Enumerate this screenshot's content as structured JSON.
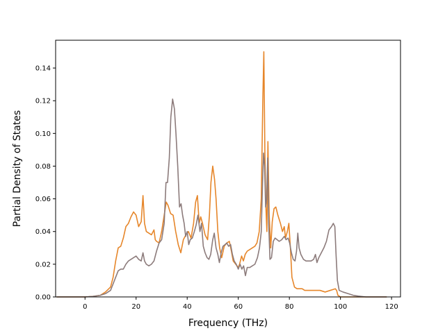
{
  "chart_data": {
    "type": "line",
    "title": "",
    "xlabel": "Frequency (THz)",
    "ylabel": "Partial Density of States",
    "xlim": [
      -11.5,
      123.5
    ],
    "ylim": [
      0,
      0.157
    ],
    "xticks": [
      0,
      20,
      40,
      60,
      80,
      100,
      120
    ],
    "yticks": [
      0.0,
      0.02,
      0.04,
      0.06,
      0.08,
      0.1,
      0.12,
      0.14
    ],
    "ytick_labels": [
      "0.00",
      "0.02",
      "0.04",
      "0.06",
      "0.08",
      "0.10",
      "0.12",
      "0.14"
    ],
    "grid": false,
    "legend": "none",
    "series": [
      {
        "color": "#e6862a",
        "points": [
          [
            -11,
            0
          ],
          [
            0,
            0
          ],
          [
            3,
            0.0003
          ],
          [
            6,
            0.001
          ],
          [
            8,
            0.003
          ],
          [
            10,
            0.006
          ],
          [
            11,
            0.012
          ],
          [
            12,
            0.022
          ],
          [
            13,
            0.03
          ],
          [
            14,
            0.031
          ],
          [
            15,
            0.036
          ],
          [
            16,
            0.043
          ],
          [
            17,
            0.045
          ],
          [
            18,
            0.049
          ],
          [
            19,
            0.052
          ],
          [
            20,
            0.05
          ],
          [
            21,
            0.043
          ],
          [
            22,
            0.046
          ],
          [
            22.7,
            0.062
          ],
          [
            23.3,
            0.045
          ],
          [
            24,
            0.04
          ],
          [
            25,
            0.039
          ],
          [
            26,
            0.038
          ],
          [
            27,
            0.041
          ],
          [
            27.5,
            0.035
          ],
          [
            28,
            0.034
          ],
          [
            29,
            0.033
          ],
          [
            30,
            0.04
          ],
          [
            31,
            0.05
          ],
          [
            31.8,
            0.058
          ],
          [
            32.5,
            0.056
          ],
          [
            33.5,
            0.051
          ],
          [
            34.5,
            0.05
          ],
          [
            35.5,
            0.04
          ],
          [
            36.5,
            0.032
          ],
          [
            37.5,
            0.027
          ],
          [
            38.5,
            0.035
          ],
          [
            39.5,
            0.038
          ],
          [
            40.5,
            0.04
          ],
          [
            41.5,
            0.036
          ],
          [
            42.5,
            0.045
          ],
          [
            43.3,
            0.058
          ],
          [
            44,
            0.062
          ],
          [
            44.7,
            0.045
          ],
          [
            45.3,
            0.049
          ],
          [
            46,
            0.045
          ],
          [
            47,
            0.038
          ],
          [
            48,
            0.035
          ],
          [
            48.7,
            0.05
          ],
          [
            49.3,
            0.07
          ],
          [
            50,
            0.08
          ],
          [
            50.7,
            0.072
          ],
          [
            51.3,
            0.06
          ],
          [
            52,
            0.04
          ],
          [
            52.7,
            0.03
          ],
          [
            53.5,
            0.024
          ],
          [
            54.5,
            0.031
          ],
          [
            55.5,
            0.033
          ],
          [
            56.5,
            0.034
          ],
          [
            57.3,
            0.028
          ],
          [
            58,
            0.022
          ],
          [
            59,
            0.02
          ],
          [
            60,
            0.018
          ],
          [
            60.5,
            0.02
          ],
          [
            61.3,
            0.025
          ],
          [
            62,
            0.022
          ],
          [
            62.7,
            0.026
          ],
          [
            63.5,
            0.028
          ],
          [
            64.5,
            0.029
          ],
          [
            65.5,
            0.03
          ],
          [
            66.5,
            0.031
          ],
          [
            67.3,
            0.033
          ],
          [
            68.2,
            0.04
          ],
          [
            69,
            0.06
          ],
          [
            69.6,
            0.12
          ],
          [
            70,
            0.15
          ],
          [
            70.4,
            0.09
          ],
          [
            70.8,
            0.055
          ],
          [
            71.2,
            0.04
          ],
          [
            71.6,
            0.095
          ],
          [
            72.1,
            0.05
          ],
          [
            72.7,
            0.03
          ],
          [
            73.3,
            0.046
          ],
          [
            74,
            0.054
          ],
          [
            74.7,
            0.055
          ],
          [
            75.5,
            0.05
          ],
          [
            76.5,
            0.045
          ],
          [
            77.3,
            0.04
          ],
          [
            78,
            0.043
          ],
          [
            78.5,
            0.036
          ],
          [
            79.2,
            0.04
          ],
          [
            79.8,
            0.045
          ],
          [
            80.4,
            0.03
          ],
          [
            81,
            0.012
          ],
          [
            82,
            0.006
          ],
          [
            83,
            0.005
          ],
          [
            84,
            0.005
          ],
          [
            85,
            0.005
          ],
          [
            86,
            0.004
          ],
          [
            88,
            0.004
          ],
          [
            90,
            0.004
          ],
          [
            92,
            0.004
          ],
          [
            94,
            0.003
          ],
          [
            96,
            0.004
          ],
          [
            98,
            0.005
          ],
          [
            98.5,
            0.004
          ],
          [
            99,
            0.001
          ],
          [
            100,
            0
          ],
          [
            118,
            0
          ]
        ]
      },
      {
        "color": "#8c7b7b",
        "points": [
          [
            -11,
            0
          ],
          [
            0,
            0
          ],
          [
            3,
            0.0003
          ],
          [
            6,
            0.001
          ],
          [
            8,
            0.002
          ],
          [
            10,
            0.004
          ],
          [
            11,
            0.008
          ],
          [
            12,
            0.012
          ],
          [
            13,
            0.016
          ],
          [
            14,
            0.017
          ],
          [
            15,
            0.017
          ],
          [
            16,
            0.02
          ],
          [
            17,
            0.022
          ],
          [
            18,
            0.023
          ],
          [
            19,
            0.024
          ],
          [
            20,
            0.025
          ],
          [
            21,
            0.023
          ],
          [
            22,
            0.022
          ],
          [
            22.7,
            0.027
          ],
          [
            23.3,
            0.022
          ],
          [
            24,
            0.02
          ],
          [
            25,
            0.019
          ],
          [
            26,
            0.02
          ],
          [
            27,
            0.022
          ],
          [
            28,
            0.028
          ],
          [
            29,
            0.033
          ],
          [
            30,
            0.035
          ],
          [
            31,
            0.045
          ],
          [
            31.7,
            0.07
          ],
          [
            32.3,
            0.07
          ],
          [
            33,
            0.085
          ],
          [
            33.6,
            0.11
          ],
          [
            34.3,
            0.121
          ],
          [
            35,
            0.115
          ],
          [
            35.6,
            0.1
          ],
          [
            36.3,
            0.08
          ],
          [
            37,
            0.055
          ],
          [
            37.6,
            0.057
          ],
          [
            38.2,
            0.05
          ],
          [
            38.8,
            0.045
          ],
          [
            39.4,
            0.037
          ],
          [
            40,
            0.04
          ],
          [
            40.6,
            0.032
          ],
          [
            41.2,
            0.035
          ],
          [
            42,
            0.036
          ],
          [
            42.8,
            0.04
          ],
          [
            43.5,
            0.044
          ],
          [
            44.2,
            0.05
          ],
          [
            45,
            0.04
          ],
          [
            45.6,
            0.045
          ],
          [
            46.3,
            0.031
          ],
          [
            47,
            0.027
          ],
          [
            47.8,
            0.024
          ],
          [
            48.5,
            0.023
          ],
          [
            49.2,
            0.026
          ],
          [
            50,
            0.035
          ],
          [
            50.6,
            0.039
          ],
          [
            51.3,
            0.03
          ],
          [
            52,
            0.026
          ],
          [
            52.6,
            0.021
          ],
          [
            53.3,
            0.027
          ],
          [
            54,
            0.031
          ],
          [
            54.8,
            0.032
          ],
          [
            55.5,
            0.033
          ],
          [
            56.2,
            0.031
          ],
          [
            57,
            0.032
          ],
          [
            57.7,
            0.026
          ],
          [
            58.4,
            0.022
          ],
          [
            59.2,
            0.02
          ],
          [
            60,
            0.017
          ],
          [
            60.7,
            0.02
          ],
          [
            61.4,
            0.017
          ],
          [
            62.1,
            0.019
          ],
          [
            62.8,
            0.013
          ],
          [
            63.5,
            0.018
          ],
          [
            64.5,
            0.018
          ],
          [
            65.5,
            0.019
          ],
          [
            66.5,
            0.02
          ],
          [
            67.5,
            0.024
          ],
          [
            68.3,
            0.03
          ],
          [
            69,
            0.04
          ],
          [
            69.5,
            0.07
          ],
          [
            69.9,
            0.088
          ],
          [
            70.3,
            0.08
          ],
          [
            70.7,
            0.055
          ],
          [
            71.1,
            0.06
          ],
          [
            71.5,
            0.085
          ],
          [
            71.9,
            0.045
          ],
          [
            72.4,
            0.023
          ],
          [
            73,
            0.024
          ],
          [
            73.7,
            0.034
          ],
          [
            74.4,
            0.036
          ],
          [
            75.2,
            0.035
          ],
          [
            76,
            0.034
          ],
          [
            77,
            0.035
          ],
          [
            78,
            0.037
          ],
          [
            78.7,
            0.035
          ],
          [
            79.5,
            0.036
          ],
          [
            80.1,
            0.033
          ],
          [
            80.8,
            0.027
          ],
          [
            81.5,
            0.023
          ],
          [
            82.2,
            0.022
          ],
          [
            82.8,
            0.028
          ],
          [
            83.3,
            0.039
          ],
          [
            83.8,
            0.03
          ],
          [
            84.5,
            0.026
          ],
          [
            85.5,
            0.023
          ],
          [
            86.5,
            0.022
          ],
          [
            87.5,
            0.022
          ],
          [
            88.5,
            0.022
          ],
          [
            89.5,
            0.023
          ],
          [
            90.2,
            0.026
          ],
          [
            90.8,
            0.021
          ],
          [
            91.5,
            0.024
          ],
          [
            92.5,
            0.027
          ],
          [
            93.5,
            0.03
          ],
          [
            94.5,
            0.034
          ],
          [
            95.5,
            0.041
          ],
          [
            96.5,
            0.043
          ],
          [
            97.2,
            0.045
          ],
          [
            97.8,
            0.043
          ],
          [
            98.3,
            0.025
          ],
          [
            98.8,
            0.01
          ],
          [
            99.5,
            0.004
          ],
          [
            101,
            0.003
          ],
          [
            103,
            0.002
          ],
          [
            105,
            0.001
          ],
          [
            107,
            0.0005
          ],
          [
            110,
            0
          ],
          [
            118,
            0
          ]
        ]
      }
    ]
  }
}
